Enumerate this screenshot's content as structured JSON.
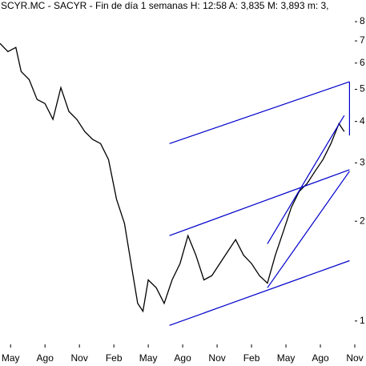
{
  "chart_data": {
    "type": "line",
    "title": "SCYR.MC - SACYR - Fin de día 1 semanas H: 12:58 A: 3,835 M: 3,893 m: 3,",
    "x": [
      0,
      3,
      6,
      8,
      11,
      14,
      17,
      20,
      23,
      26,
      29,
      32,
      35,
      38,
      41,
      44,
      47,
      50,
      52,
      54,
      56,
      59,
      62,
      65,
      68,
      71,
      74,
      77,
      80,
      83,
      86,
      89,
      92,
      95,
      98,
      101,
      104,
      107,
      110,
      113,
      116,
      119,
      122,
      125,
      128,
      130
    ],
    "series": [
      {
        "name": "SCYR.MC",
        "color": "#000000",
        "values": [
          6.88,
          6.5,
          6.69,
          5.66,
          5.35,
          4.66,
          4.53,
          4.06,
          5.06,
          4.29,
          4.06,
          3.73,
          3.53,
          3.43,
          3.07,
          2.33,
          1.97,
          1.41,
          1.13,
          1.07,
          1.33,
          1.26,
          1.13,
          1.33,
          1.49,
          1.81,
          1.58,
          1.33,
          1.37,
          1.49,
          1.62,
          1.76,
          1.58,
          1.49,
          1.37,
          1.3,
          1.58,
          1.86,
          2.2,
          2.46,
          2.6,
          2.83,
          3.07,
          3.43,
          3.94,
          3.73
        ]
      }
    ],
    "trendlines": [
      {
        "x": [
          64,
          132
        ],
        "values": [
          3.43,
          5.27
        ]
      },
      {
        "x": [
          64,
          132
        ],
        "values": [
          1.81,
          2.86
        ]
      },
      {
        "x": [
          64,
          132
        ],
        "values": [
          0.97,
          1.52
        ]
      },
      {
        "x": [
          101,
          130
        ],
        "values": [
          1.71,
          4.17
        ]
      },
      {
        "x": [
          101,
          132
        ],
        "values": [
          1.26,
          2.83
        ]
      },
      {
        "x": [
          132,
          132
        ],
        "values": [
          5.27,
          3.63
        ]
      }
    ],
    "trend_color": "#0000cc",
    "log_y": true,
    "xlim": [
      0,
      134
    ],
    "xticks": [
      {
        "value": 4,
        "label": "May"
      },
      {
        "value": 17,
        "label": "Ago"
      },
      {
        "value": 30,
        "label": "Nov"
      },
      {
        "value": 43,
        "label": "Feb"
      },
      {
        "value": 56,
        "label": "May"
      },
      {
        "value": 69,
        "label": "Ago"
      },
      {
        "value": 82,
        "label": "Nov"
      },
      {
        "value": 95,
        "label": "Feb"
      },
      {
        "value": 108,
        "label": "May"
      },
      {
        "value": 121,
        "label": "Ago"
      },
      {
        "value": 134,
        "label": "Nov"
      }
    ],
    "ylim": [
      0.85,
      9.3
    ],
    "yticks": [
      1,
      2,
      3,
      4,
      5,
      6,
      7,
      8
    ]
  }
}
